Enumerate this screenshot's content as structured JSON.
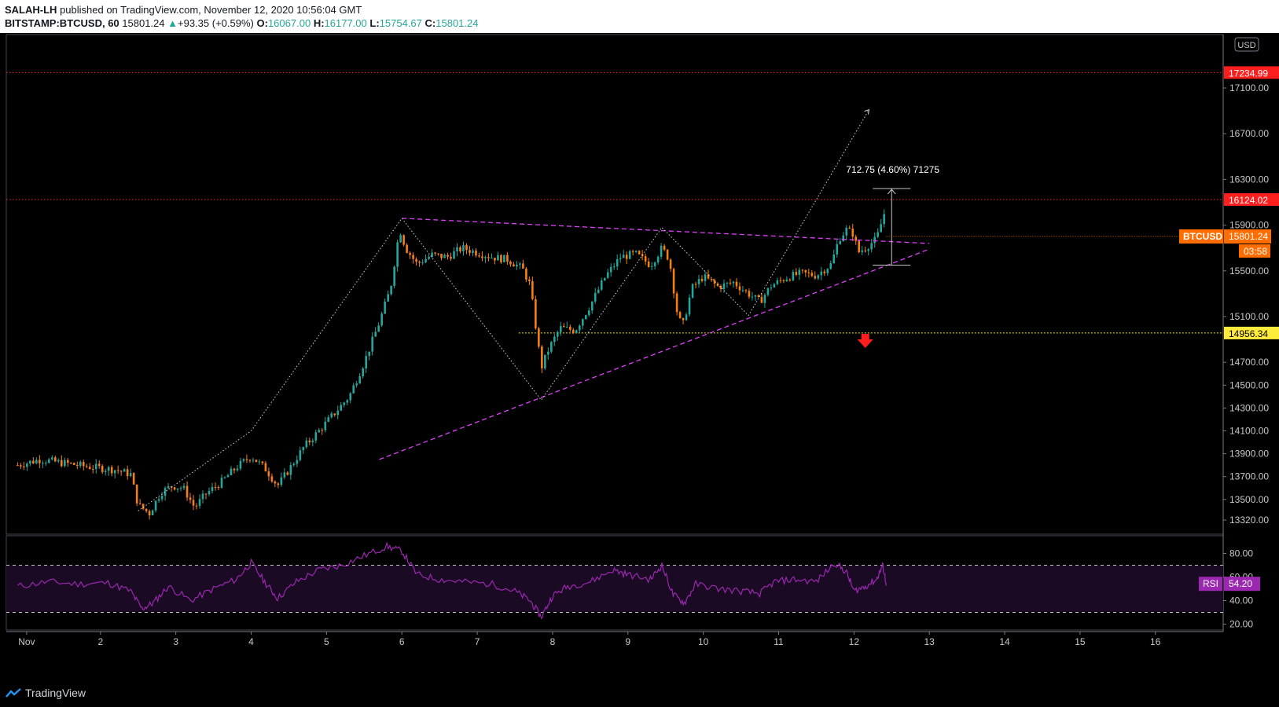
{
  "header": {
    "publisher": "SALAH-LH",
    "published_text": "published on TradingView.com, November 12, 2020 10:56:04 GMT",
    "symbol": "BITSTAMP:BTCUSD, 60",
    "last": "15801.24",
    "change": "+93.35 (+0.59%)",
    "o_label": "O:",
    "o": "16067.00",
    "h_label": "H:",
    "h": "16177.00",
    "l_label": "L:",
    "l": "15754.67",
    "c_label": "C:",
    "c": "15801.24"
  },
  "footer": {
    "brand": "TradingView"
  },
  "chart_data": [
    {
      "type": "candlestick",
      "symbol": "BTCUSD",
      "currency_label": "USD",
      "x_tick_labels": [
        "Nov",
        "2",
        "3",
        "4",
        "5",
        "6",
        "7",
        "8",
        "9",
        "10",
        "11",
        "12",
        "13",
        "14",
        "15",
        "16"
      ],
      "y_tick_labels": [
        "17100.00",
        "16700.00",
        "16300.00",
        "15900.00",
        "15500.00",
        "15100.00",
        "14700.00",
        "14500.00",
        "14300.00",
        "14100.00",
        "13900.00",
        "13700.00",
        "13500.00",
        "13320.00"
      ],
      "ylim": [
        13200,
        17600
      ],
      "xlim_days": [
        0.75,
        16.9
      ],
      "price_path": [
        [
          0.9,
          13800
        ],
        [
          1.2,
          13850
        ],
        [
          1.5,
          13820
        ],
        [
          1.8,
          13790
        ],
        [
          2.2,
          13760
        ],
        [
          2.4,
          13720
        ],
        [
          2.5,
          13450
        ],
        [
          2.65,
          13380
        ],
        [
          2.8,
          13560
        ],
        [
          2.95,
          13620
        ],
        [
          3.1,
          13600
        ],
        [
          3.25,
          13430
        ],
        [
          3.4,
          13550
        ],
        [
          3.6,
          13650
        ],
        [
          3.8,
          13780
        ],
        [
          4.0,
          13880
        ],
        [
          4.2,
          13760
        ],
        [
          4.35,
          13620
        ],
        [
          4.5,
          13760
        ],
        [
          4.7,
          13960
        ],
        [
          4.9,
          14100
        ],
        [
          5.1,
          14250
        ],
        [
          5.3,
          14400
        ],
        [
          5.5,
          14700
        ],
        [
          5.7,
          15050
        ],
        [
          5.85,
          15350
        ],
        [
          5.97,
          15870
        ],
        [
          6.05,
          15700
        ],
        [
          6.2,
          15560
        ],
        [
          6.4,
          15640
        ],
        [
          6.6,
          15620
        ],
        [
          6.8,
          15700
        ],
        [
          7.0,
          15660
        ],
        [
          7.2,
          15620
        ],
        [
          7.4,
          15600
        ],
        [
          7.6,
          15520
        ],
        [
          7.7,
          15380
        ],
        [
          7.8,
          14900
        ],
        [
          7.85,
          14650
        ],
        [
          7.95,
          14820
        ],
        [
          8.1,
          15000
        ],
        [
          8.3,
          14980
        ],
        [
          8.5,
          15200
        ],
        [
          8.7,
          15450
        ],
        [
          8.9,
          15620
        ],
        [
          9.1,
          15650
        ],
        [
          9.3,
          15550
        ],
        [
          9.45,
          15700
        ],
        [
          9.55,
          15600
        ],
        [
          9.65,
          15150
        ],
        [
          9.72,
          15000
        ],
        [
          9.85,
          15350
        ],
        [
          10.0,
          15450
        ],
        [
          10.2,
          15360
        ],
        [
          10.4,
          15400
        ],
        [
          10.6,
          15300
        ],
        [
          10.75,
          15230
        ],
        [
          10.9,
          15370
        ],
        [
          11.1,
          15440
        ],
        [
          11.3,
          15480
        ],
        [
          11.5,
          15460
        ],
        [
          11.7,
          15560
        ],
        [
          11.8,
          15780
        ],
        [
          11.9,
          15860
        ],
        [
          12.0,
          15820
        ],
        [
          12.05,
          15660
        ],
        [
          12.15,
          15700
        ],
        [
          12.3,
          15780
        ],
        [
          12.4,
          16000
        ],
        [
          12.43,
          15801
        ]
      ],
      "h_lines": [
        {
          "price": 17234.99,
          "label": "17234.99",
          "color": "#ff1e1e"
        },
        {
          "price": 16124.02,
          "label": "16124.02",
          "color": "#ff1e1e"
        },
        {
          "price": 14956.34,
          "label": "14956.34",
          "color": "#ffeb3b"
        }
      ],
      "last_price": {
        "price": 15801.24,
        "label": "15801.24",
        "symbol_label": "BTCUSD",
        "countdown": "03:58",
        "color": "#ff6d00"
      },
      "triangle_upper": [
        [
          6.0,
          15960
        ],
        [
          13.0,
          15740
        ]
      ],
      "triangle_lower": [
        [
          5.7,
          13850
        ],
        [
          13.0,
          15690
        ]
      ],
      "zigzag": [
        [
          2.5,
          13400
        ],
        [
          4.0,
          14100
        ],
        [
          6.0,
          15960
        ],
        [
          7.85,
          14370
        ],
        [
          9.45,
          15880
        ],
        [
          10.6,
          15110
        ],
        [
          12.2,
          16910
        ]
      ],
      "measure": {
        "label": "712.75 (4.60%) 71275",
        "x": 12.5,
        "p1": 15550,
        "p2": 16220
      },
      "arrow_down": {
        "x": 12.15,
        "price": 14880,
        "color": "#ff1e1e"
      }
    },
    {
      "type": "line",
      "indicator": "RSI",
      "label": "RSI",
      "value_label": "54.20",
      "color": "#9c27b0",
      "y_tick_labels": [
        "80.00",
        "60.00",
        "40.00",
        "20.00"
      ],
      "ylim": [
        15,
        95
      ],
      "band": [
        30,
        70
      ],
      "values": [
        [
          0.9,
          52
        ],
        [
          1.3,
          56
        ],
        [
          1.7,
          54
        ],
        [
          2.1,
          55
        ],
        [
          2.4,
          48
        ],
        [
          2.55,
          33
        ],
        [
          2.7,
          38
        ],
        [
          2.9,
          52
        ],
        [
          3.2,
          40
        ],
        [
          3.5,
          50
        ],
        [
          3.8,
          58
        ],
        [
          4.0,
          72
        ],
        [
          4.2,
          54
        ],
        [
          4.35,
          42
        ],
        [
          4.6,
          56
        ],
        [
          4.9,
          66
        ],
        [
          5.2,
          70
        ],
        [
          5.5,
          78
        ],
        [
          5.8,
          86
        ],
        [
          6.0,
          82
        ],
        [
          6.2,
          62
        ],
        [
          6.5,
          58
        ],
        [
          6.8,
          56
        ],
        [
          7.2,
          54
        ],
        [
          7.5,
          48
        ],
        [
          7.7,
          40
        ],
        [
          7.85,
          26
        ],
        [
          8.0,
          44
        ],
        [
          8.2,
          52
        ],
        [
          8.5,
          56
        ],
        [
          8.8,
          66
        ],
        [
          9.0,
          62
        ],
        [
          9.3,
          58
        ],
        [
          9.45,
          70
        ],
        [
          9.6,
          45
        ],
        [
          9.75,
          38
        ],
        [
          9.9,
          54
        ],
        [
          10.2,
          50
        ],
        [
          10.5,
          48
        ],
        [
          10.75,
          46
        ],
        [
          10.95,
          56
        ],
        [
          11.2,
          58
        ],
        [
          11.5,
          56
        ],
        [
          11.75,
          72
        ],
        [
          11.9,
          64
        ],
        [
          12.0,
          48
        ],
        [
          12.15,
          52
        ],
        [
          12.3,
          58
        ],
        [
          12.38,
          70
        ],
        [
          12.43,
          54.2
        ]
      ]
    }
  ]
}
